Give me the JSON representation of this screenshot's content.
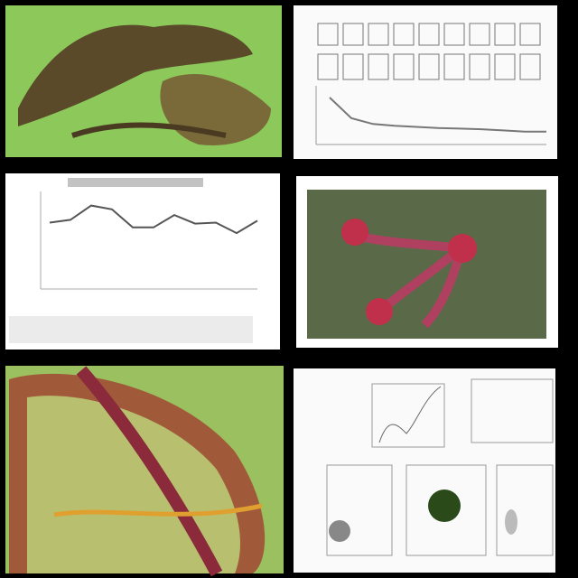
{
  "chart_data": [
    {
      "type": "line",
      "values": [
        70,
        73,
        88,
        84,
        65,
        65,
        78,
        69,
        70,
        59,
        72
      ],
      "ylim": [
        0,
        100
      ],
      "color": "#555555"
    },
    {
      "type": "line",
      "values": [
        80,
        45,
        35,
        32,
        30,
        28,
        27,
        26,
        24,
        22,
        22
      ],
      "ylim": [
        0,
        100
      ],
      "color": "#777777"
    }
  ]
}
